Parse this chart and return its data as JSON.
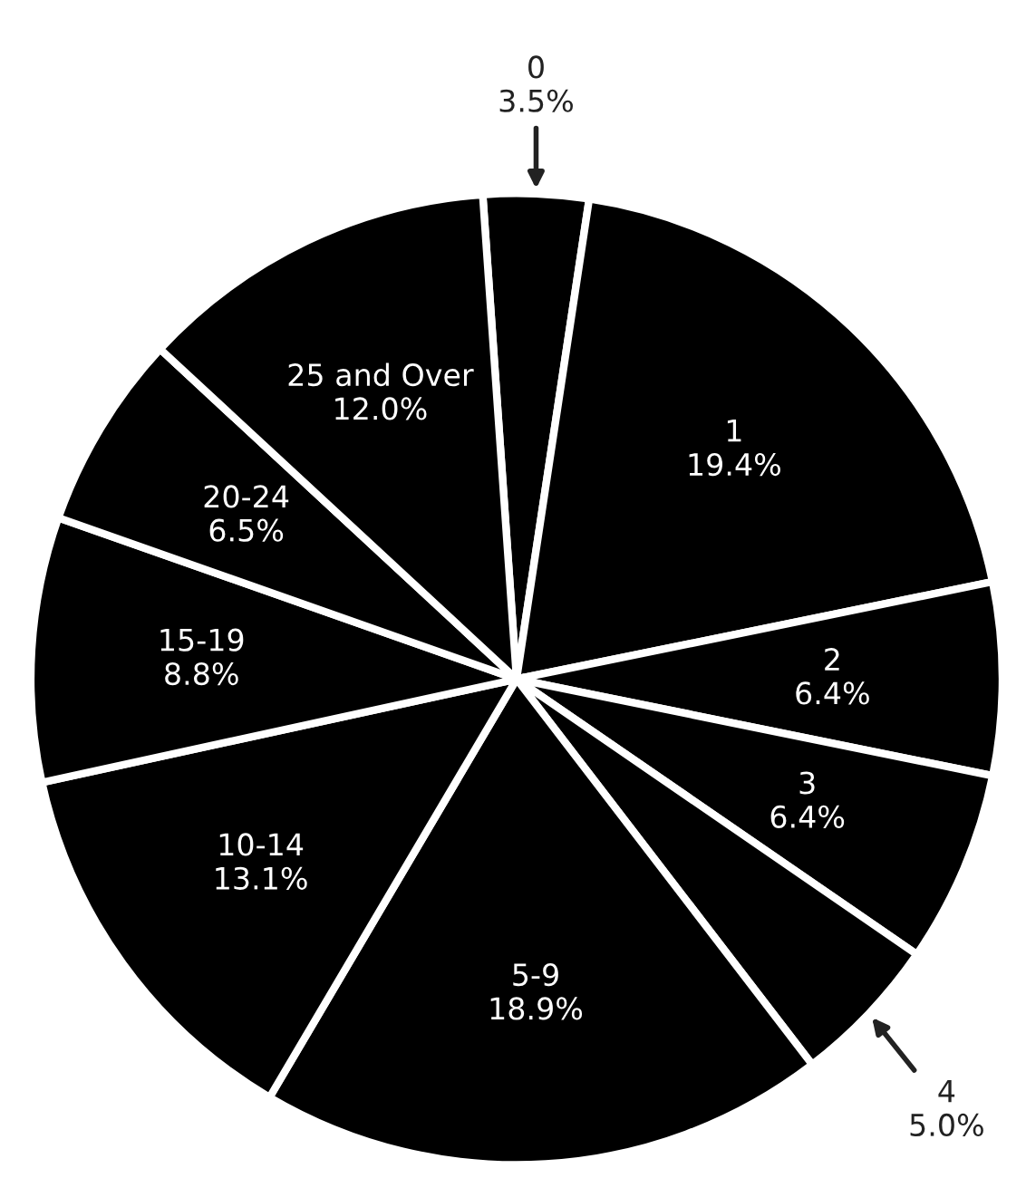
{
  "chart_data": {
    "type": "pie",
    "categories": [
      "0",
      "1",
      "2",
      "3",
      "4",
      "5-9",
      "10-14",
      "15-19",
      "20-24",
      "25 and Over"
    ],
    "values": [
      3.5,
      19.4,
      6.4,
      6.4,
      5.0,
      18.9,
      13.1,
      8.8,
      6.5,
      12.0
    ],
    "colors": [
      "#000000",
      "#000000",
      "#000000",
      "#000000",
      "#000000",
      "#000000",
      "#000000",
      "#000000",
      "#000000",
      "#000000"
    ],
    "value_labels": [
      "3.5%",
      "19.4%",
      "6.4%",
      "6.4%",
      "5.0%",
      "18.9%",
      "13.1%",
      "8.8%",
      "6.5%",
      "12.0%"
    ],
    "legend": false
  }
}
